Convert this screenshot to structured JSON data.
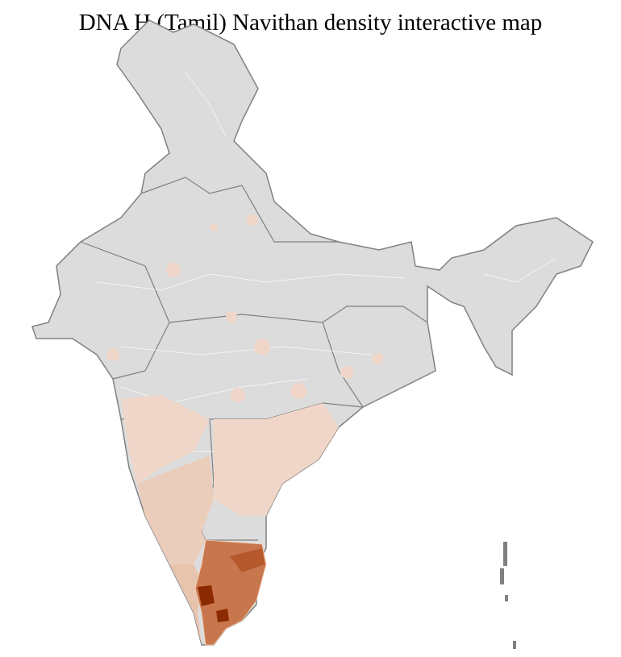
{
  "title": "DNA H (Tamil) Navithan density interactive map",
  "colors": {
    "no_data": "#dcdcdc",
    "border_state": "#808080",
    "border_district": "#ffffff",
    "low": "#f0d6c8",
    "light": "#e8c3ad",
    "medium": "#c8764d",
    "high": "#b5582c",
    "highest": "#8b2a00"
  },
  "density_levels": [
    "no_data",
    "low",
    "light",
    "medium",
    "high",
    "highest"
  ]
}
